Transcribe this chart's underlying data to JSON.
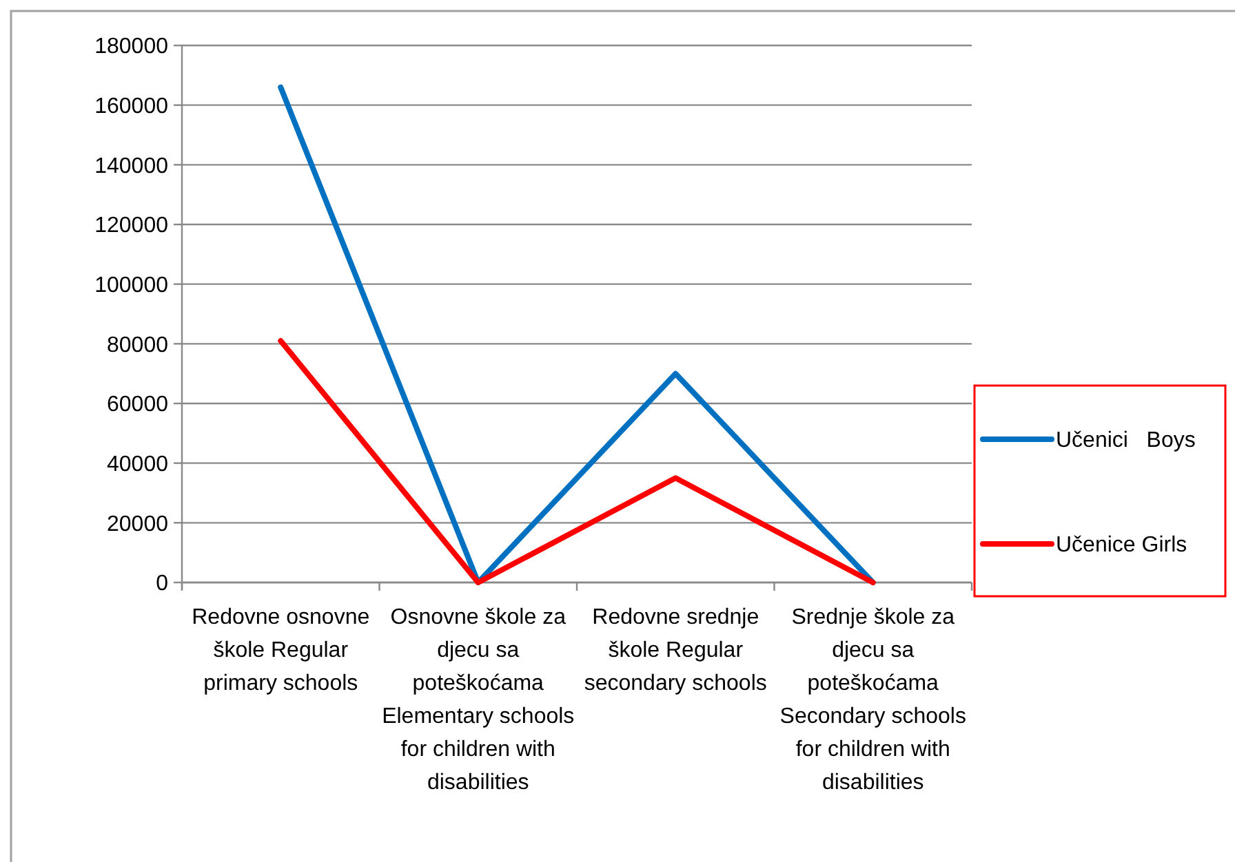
{
  "chart_data": {
    "type": "line",
    "categories": [
      "Redovne osnovne škole Regular primary schools",
      "Osnovne škole za djecu sa poteškoćama Elementary schools for children with disabilities",
      "Redovne srednje škole Regular secondary schools",
      "Srednje škole za djecu sa poteškoćama Secondary schools for children with disabilities"
    ],
    "series": [
      {
        "name": "Učenici   Boys",
        "color": "#0070c0",
        "values": [
          166000,
          0,
          70000,
          0
        ]
      },
      {
        "name": "Učenice Girls",
        "color": "#ff0000",
        "values": [
          81000,
          0,
          35000,
          0
        ]
      }
    ],
    "ylim": [
      0,
      180000
    ],
    "yticks": [
      0,
      20000,
      40000,
      60000,
      80000,
      100000,
      120000,
      140000,
      160000,
      180000
    ],
    "grid": "y",
    "legend": "right",
    "marker": "none",
    "line_style": "solid"
  }
}
